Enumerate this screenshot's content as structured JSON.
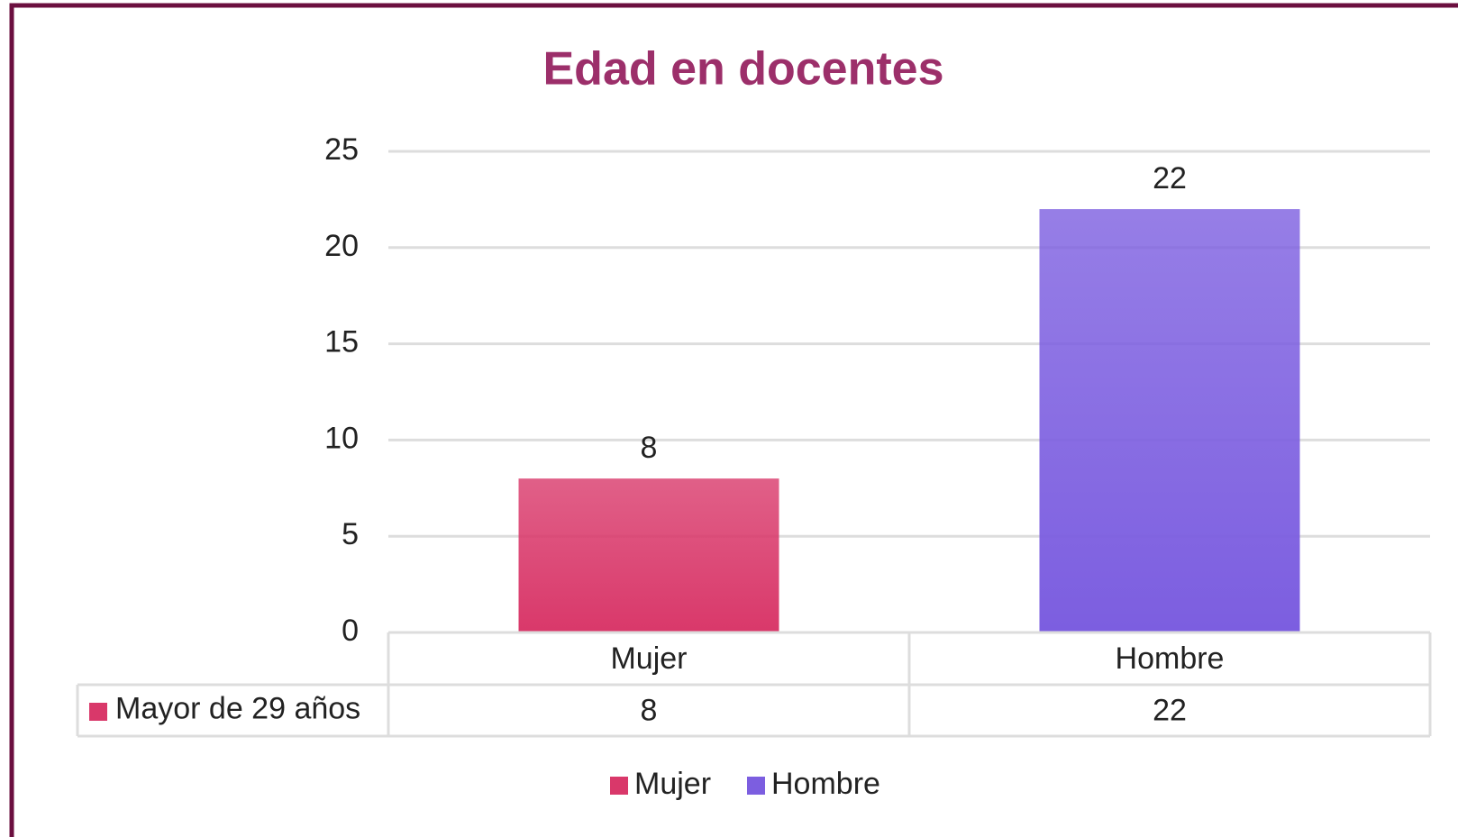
{
  "chart_data": {
    "type": "bar",
    "title": "Edad en docentes",
    "categories": [
      "Mujer",
      "Hombre"
    ],
    "colors": [
      "#d9386a",
      "#7c5ee0"
    ],
    "series": [
      {
        "name": "Mayor de 29 años",
        "values": [
          8,
          22
        ]
      }
    ],
    "ylim": [
      0,
      25
    ],
    "yticks": [
      0,
      5,
      10,
      15,
      20,
      25
    ],
    "grid": true,
    "data_labels": true,
    "data_table": true,
    "legend": "bottom"
  }
}
